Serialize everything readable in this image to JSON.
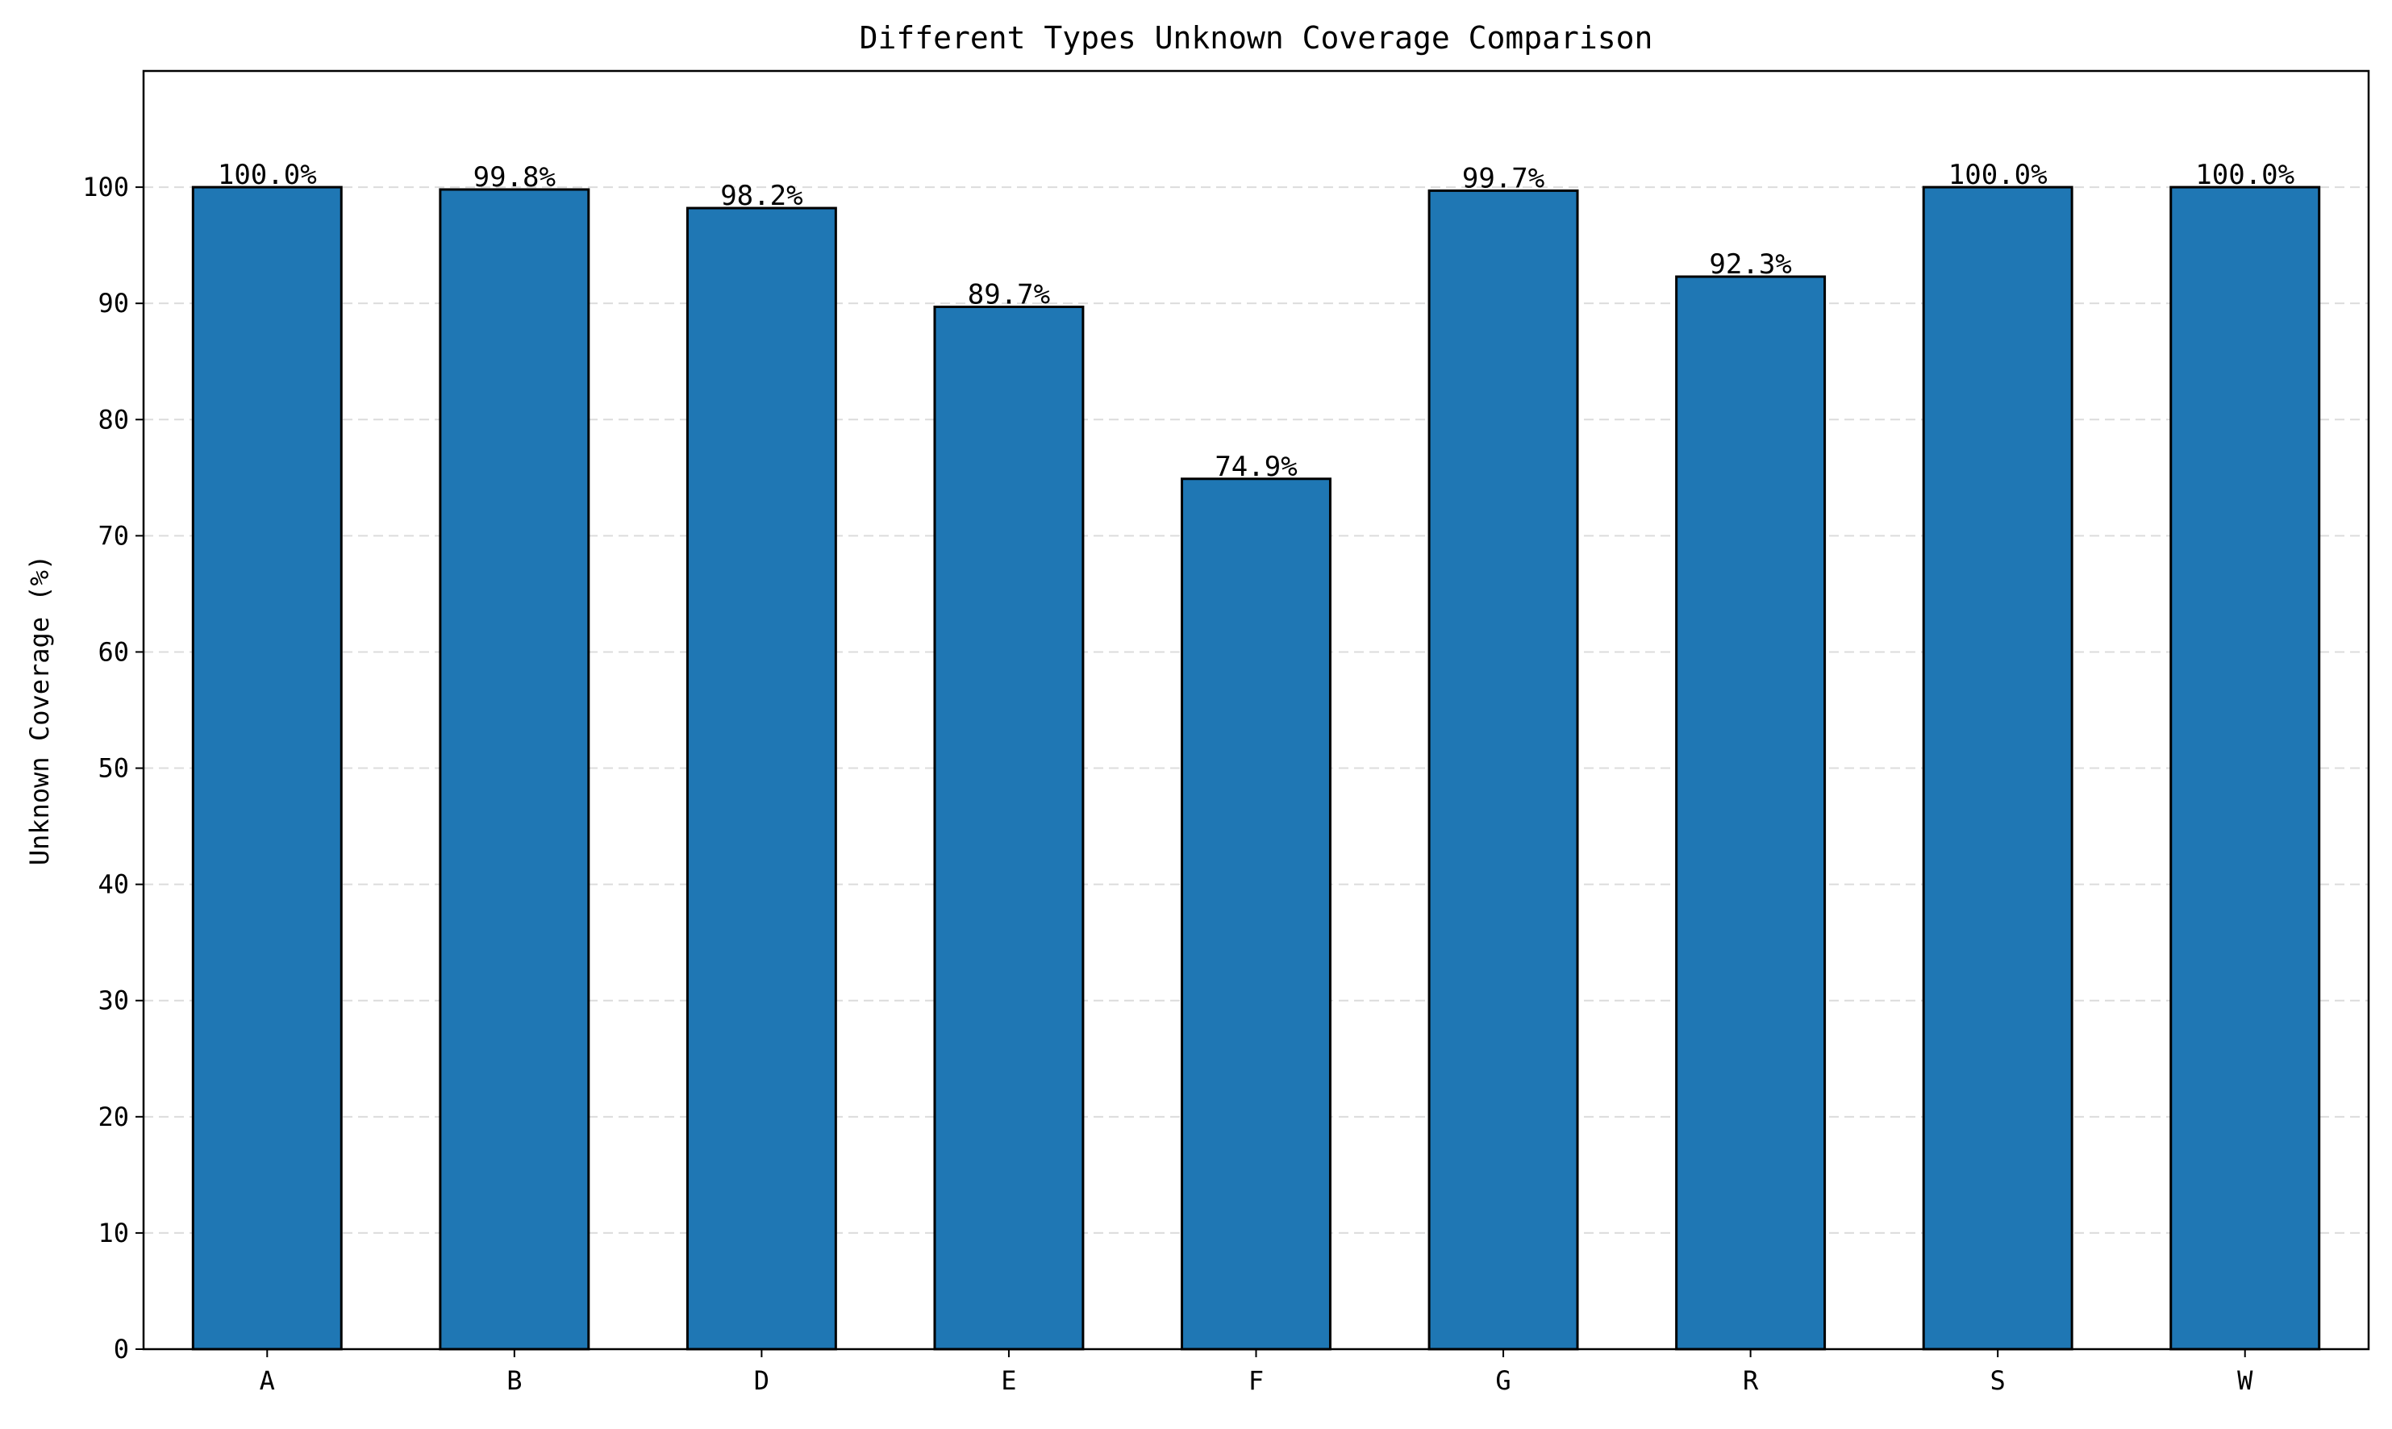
{
  "chart_data": {
    "type": "bar",
    "title": "Different Types Unknown Coverage Comparison",
    "xlabel": "",
    "ylabel": "Unknown Coverage (%)",
    "categories": [
      "A",
      "B",
      "D",
      "E",
      "F",
      "G",
      "R",
      "S",
      "W"
    ],
    "values": [
      100.0,
      99.8,
      98.2,
      89.7,
      74.9,
      99.7,
      92.3,
      100.0,
      100.0
    ],
    "value_labels": [
      "100.0%",
      "99.8%",
      "98.2%",
      "89.7%",
      "74.9%",
      "99.7%",
      "92.3%",
      "100.0%",
      "100.0%"
    ],
    "ylim": [
      0,
      110
    ],
    "yticks": [
      0,
      10,
      20,
      30,
      40,
      50,
      60,
      70,
      80,
      90,
      100
    ],
    "ytick_labels": [
      "0",
      "10",
      "20",
      "30",
      "40",
      "50",
      "60",
      "70",
      "80",
      "90",
      "100"
    ],
    "grid": "y, dashed",
    "legend": "none",
    "bar_color": "#1f77b4",
    "bar_edge_color": "#000000"
  }
}
